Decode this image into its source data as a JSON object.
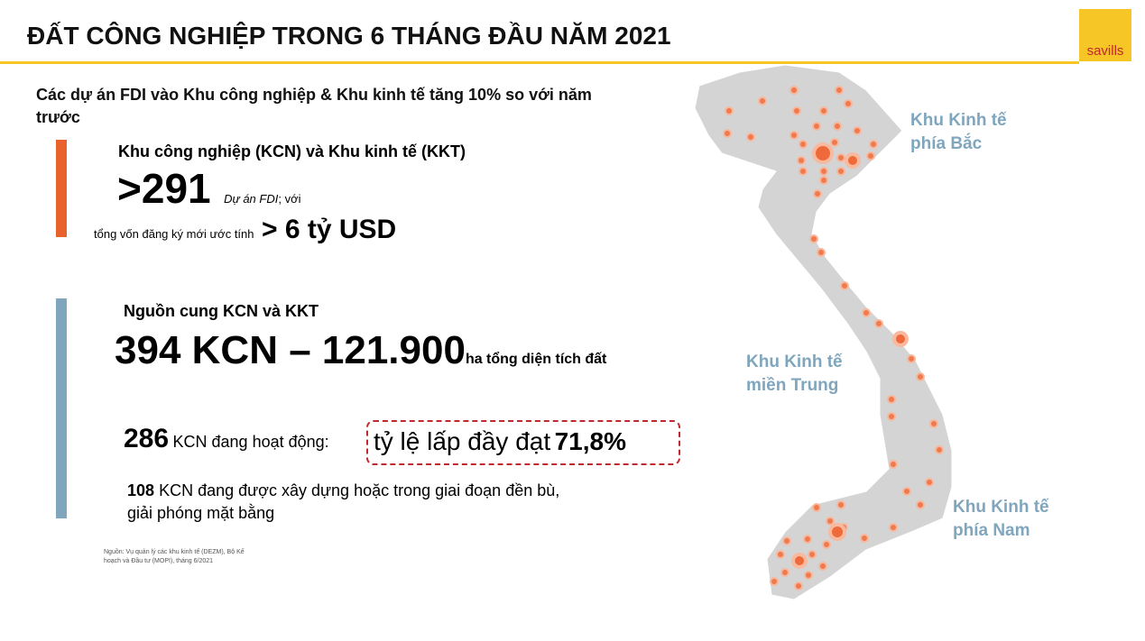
{
  "header": {
    "title": "ĐẤT CÔNG NGHIỆP TRONG 6 THÁNG ĐẦU NĂM 2021",
    "logo": "savills"
  },
  "subtitle": "Các dự án FDI vào Khu công nghiệp & Khu kinh tế tăng 10% so với năm trước",
  "block1": {
    "heading": "Khu công nghiệp (KCN) và Khu kinh tế (KKT)",
    "big": ">291",
    "small_italic": "Dự án FDI",
    "small_rest": "; với",
    "capital_label": "tổng vốn đăng ký mới ước tính",
    "capital_value": "> 6 tỷ USD"
  },
  "block2": {
    "heading": "Nguồn cung KCN và KKT",
    "big": "394 KCN – 121.900",
    "big_suffix": "ha tổng diện tích đất",
    "operating_count": "286",
    "operating_label": "KCN đang hoạt động:",
    "occupancy_label": "tỷ lệ lấp đầy đạt",
    "occupancy_value": "71,8%",
    "building_count": "108",
    "building_label": "KCN đang được xây dựng hoặc trong giai đoạn đền bù, giải phóng mặt bằng"
  },
  "source": "Nguồn: Vụ quản lý các khu kinh tế (DEZM), Bộ Kế hoạch và Đầu tư (MOPI), tháng 6/2021",
  "map": {
    "regions": [
      "Khu Kinh tế phía Bắc",
      "Khu Kinh tế miền Trung",
      "Khu Kinh tế phía Nam"
    ]
  }
}
